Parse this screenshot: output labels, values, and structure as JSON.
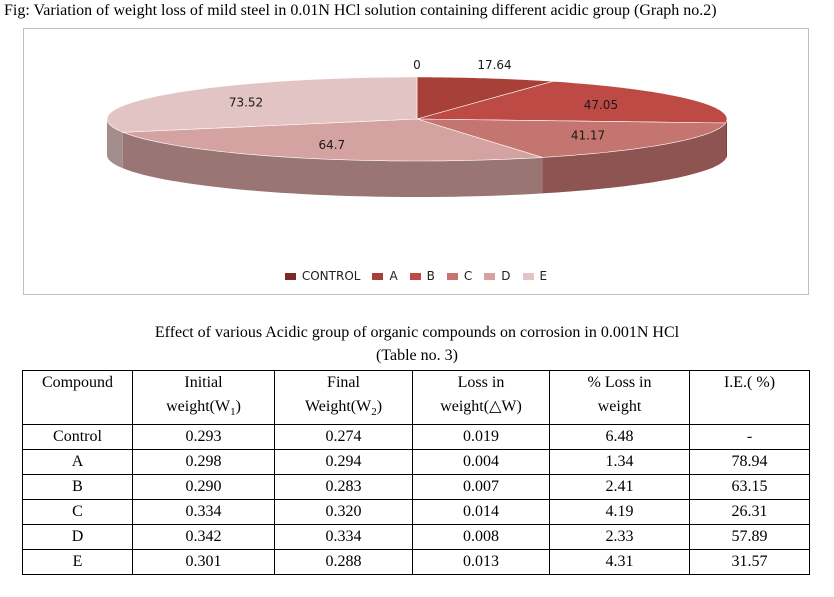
{
  "figure": {
    "caption": "Fig: Variation of weight loss of mild steel in 0.01N HCl solution containing different acidic group (Graph no.2)"
  },
  "chart_data": {
    "type": "pie",
    "categories": [
      "CONTROL",
      "A",
      "B",
      "C",
      "D",
      "E"
    ],
    "values": [
      0,
      17.64,
      47.05,
      41.17,
      64.7,
      73.52
    ],
    "labels": [
      "0",
      "17.64",
      "47.05",
      "41.17",
      "64.7",
      "73.52"
    ],
    "colors": [
      "#7a2a26",
      "#a8403a",
      "#bd4a45",
      "#c47570",
      "#d4a3a1",
      "#e3c4c4"
    ],
    "legend_position": "bottom",
    "style": "3d"
  },
  "table": {
    "title": "Effect of various Acidic group of organic compounds on corrosion in 0.001N HCl",
    "subtitle": "(Table no. 3)",
    "headers": {
      "compound": "Compound",
      "initial_1": "Initial",
      "initial_2": "weight(W",
      "initial_sub": "1",
      "initial_3": ")",
      "final_1": "Final",
      "final_2": "Weight(W",
      "final_sub": "2",
      "final_3": ")",
      "loss_1": "Loss in",
      "loss_2": "weight(△W)",
      "pct_1": "% Loss in",
      "pct_2": "weight",
      "ie": "I.E.( %)"
    },
    "rows": [
      {
        "compound": "Control",
        "initial": "0.293",
        "final": "0.274",
        "loss": "0.019",
        "pct": "6.48",
        "ie": "-"
      },
      {
        "compound": "A",
        "initial": "0.298",
        "final": "0.294",
        "loss": "0.004",
        "pct": "1.34",
        "ie": "78.94"
      },
      {
        "compound": "B",
        "initial": "0.290",
        "final": "0.283",
        "loss": "0.007",
        "pct": "2.41",
        "ie": "63.15"
      },
      {
        "compound": "C",
        "initial": "0.334",
        "final": "0.320",
        "loss": "0.014",
        "pct": "4.19",
        "ie": "26.31"
      },
      {
        "compound": "D",
        "initial": "0.342",
        "final": "0.334",
        "loss": "0.008",
        "pct": "2.33",
        "ie": "57.89"
      },
      {
        "compound": "E",
        "initial": "0.301",
        "final": "0.288",
        "loss": "0.013",
        "pct": "4.31",
        "ie": "31.57"
      }
    ]
  }
}
